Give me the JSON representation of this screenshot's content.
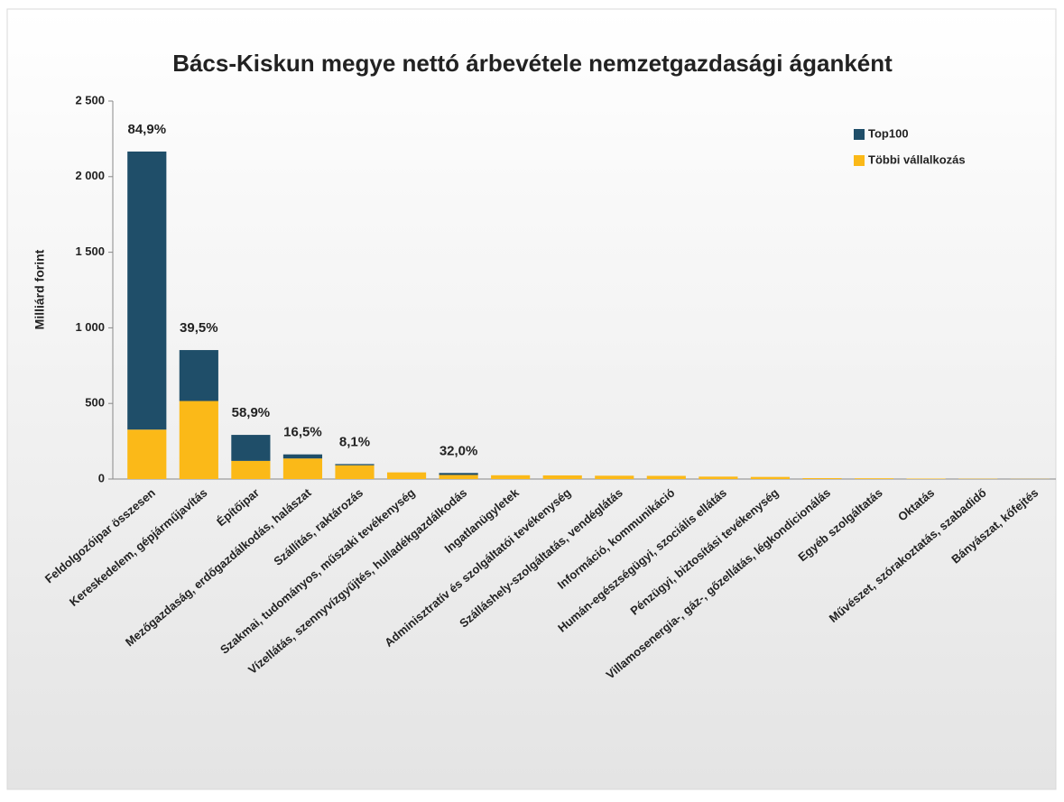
{
  "chart_data": {
    "type": "stacked_bar",
    "title": "Bács-Kiskun megye nettó árbevétele nemzetgazdasági áganként",
    "y_label": "Milliárd forint",
    "categories": [
      "Feldolgozóipar összesen",
      "Kereskedelem, gépjárműjavítás",
      "Építőipar",
      "Mezőgazdaság, erdőgazdálkodás, halászat",
      "Szállítás, raktározás",
      "Szakmai, tudományos, műszaki tevékenység",
      "Vízellátás, szennyvízgyűjtés, hulladékgazdálkodás",
      "Ingatlanügyletek",
      "Adminisztratív és szolgáltatói tevékenység",
      "Szálláshely-szolgáltatás, vendéglátás",
      "Információ, kommunikáció",
      "Humán-egészségügyi, szociális ellátás",
      "Pénzügyi, biztosítási tevékenység",
      "Villamosenergia-, gáz-, gőzellátás, légkondicionálás",
      "Egyéb szolgáltatás",
      "Oktatás",
      "Művészet, szórakoztatás, szabadidő",
      "Bányászat, kőfejtés"
    ],
    "series": [
      {
        "name": "Többi vállalkozás",
        "color": "#fbb918",
        "values": [
          327,
          516,
          120,
          136,
          91,
          44,
          27,
          25,
          24,
          22,
          21,
          16,
          14,
          6,
          5,
          3,
          2,
          1
        ]
      },
      {
        "name": "Top100",
        "color": "#1f4e69",
        "values": [
          1839,
          337,
          172,
          27,
          8,
          0,
          13,
          0,
          0,
          0,
          0,
          0,
          0,
          0,
          0,
          0,
          0,
          0
        ]
      }
    ],
    "percent_labels": [
      "84,9%",
      "39,5%",
      "58,9%",
      "16,5%",
      "8,1%",
      null,
      "32,0%",
      null,
      null,
      null,
      null,
      null,
      null,
      null,
      null,
      null,
      null,
      null
    ],
    "ylim": [
      0,
      2500
    ],
    "yticks": [
      0,
      500,
      {
        "value": 1000,
        "label": "1 000"
      },
      {
        "value": 1500,
        "label": "1 500"
      },
      {
        "value": 2000,
        "label": "2 000"
      },
      {
        "value": 2500,
        "label": "2 500"
      }
    ],
    "legend": "top-right",
    "grid": false
  }
}
